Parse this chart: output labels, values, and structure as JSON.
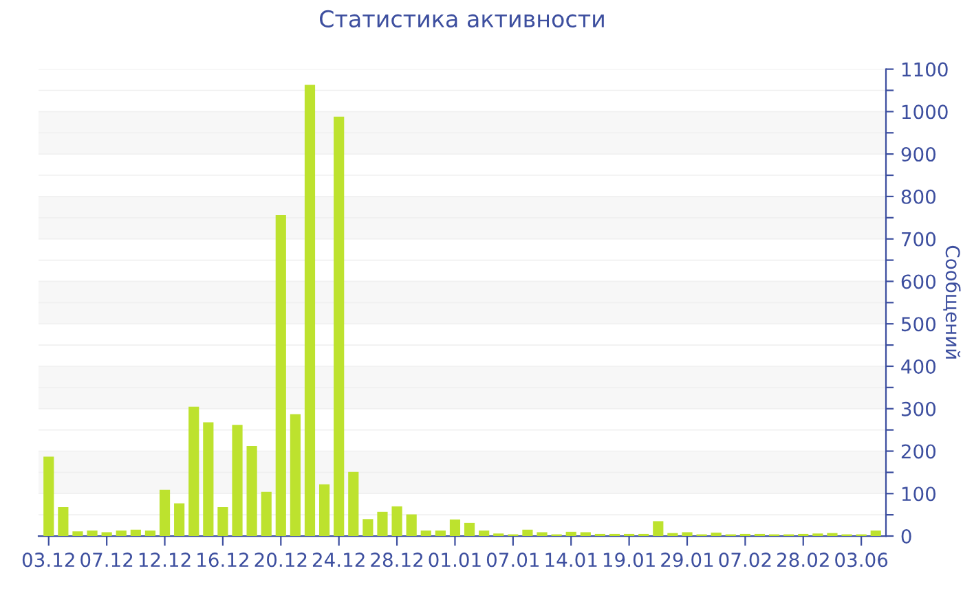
{
  "chart_data": {
    "type": "bar",
    "title": "Статистика активности",
    "ylabel": "Сообщений",
    "categories": [
      "03.12",
      null,
      null,
      null,
      "07.12",
      null,
      null,
      null,
      "12.12",
      null,
      null,
      null,
      "16.12",
      null,
      null,
      null,
      "20.12",
      null,
      null,
      null,
      "24.12",
      null,
      null,
      null,
      "28.12",
      null,
      null,
      null,
      "01.01",
      null,
      null,
      null,
      "07.01",
      null,
      null,
      null,
      "14.01",
      null,
      null,
      null,
      "19.01",
      null,
      null,
      null,
      "29.01",
      null,
      null,
      null,
      "07.02",
      null,
      null,
      null,
      "28.02",
      null,
      null,
      null,
      "03.06",
      null
    ],
    "values": [
      187,
      68,
      11,
      13,
      9,
      13,
      15,
      13,
      109,
      77,
      305,
      268,
      68,
      262,
      212,
      104,
      756,
      287,
      1063,
      122,
      988,
      151,
      40,
      57,
      70,
      51,
      13,
      13,
      39,
      31,
      13,
      6,
      4,
      15,
      9,
      4,
      10,
      9,
      5,
      5,
      5,
      5,
      35,
      7,
      9,
      4,
      8,
      4,
      5,
      5,
      4,
      4,
      5,
      6,
      7,
      4,
      4,
      13
    ],
    "color": "#bde22e",
    "ylim": [
      0,
      1100
    ],
    "yticks": [
      0,
      {
        "value": 50,
        "label": null
      },
      100,
      {
        "value": 150,
        "label": null
      },
      200,
      {
        "value": 250,
        "label": null
      },
      300,
      {
        "value": 350,
        "label": null
      },
      400,
      {
        "value": 450,
        "label": null
      },
      500,
      {
        "value": 550,
        "label": null
      },
      600,
      {
        "value": 650,
        "label": null
      },
      700,
      {
        "value": 750,
        "label": null
      },
      800,
      {
        "value": 850,
        "label": null
      },
      900,
      {
        "value": 950,
        "label": null
      },
      1000,
      {
        "value": 1050,
        "label": null
      },
      1100
    ],
    "grid": "y"
  }
}
